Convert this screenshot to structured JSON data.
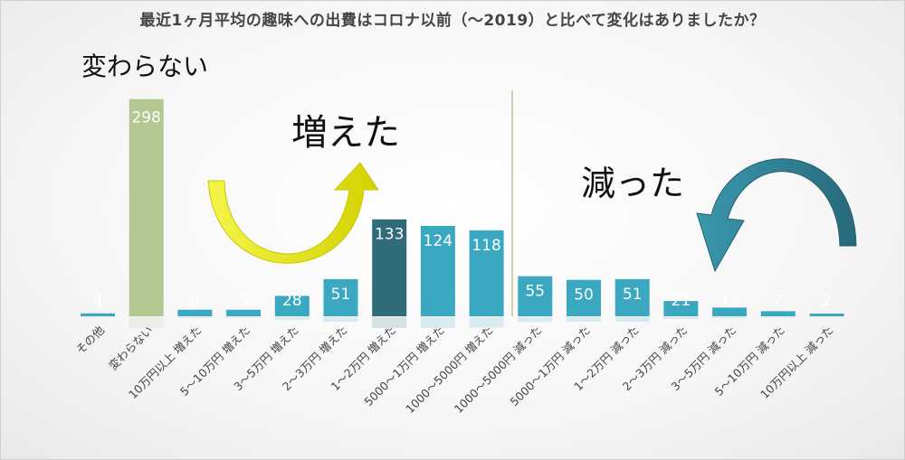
{
  "chart_data": {
    "type": "bar",
    "title": "最近1ヶ月平均の趣味への出費はコロナ以前（～2019）と比べて変化はありましたか？",
    "categories": [
      "その他",
      "変わらない",
      "10万円以上 増えた",
      "5～10万円 増えた",
      "3～5万円 増えた",
      "2～3万円 増えた",
      "1～2万円 増えた",
      "5000～1万円 増えた",
      "1000～5000円 増えた",
      "1000～5000円 減った",
      "5000～1万円 減った",
      "1～2万円 減った",
      "2～3万円 減った",
      "3～5万円 減った",
      "5～10万円 減った",
      "10万円以上 減った"
    ],
    "values": [
      4,
      298,
      9,
      9,
      28,
      51,
      133,
      124,
      118,
      55,
      50,
      51,
      21,
      12,
      7,
      2
    ],
    "bar_colors": [
      "#3aa8c0",
      "#b3c890",
      "#3aa8c0",
      "#3aa8c0",
      "#3aa8c0",
      "#3aa8c0",
      "#2f6b78",
      "#3aa8c0",
      "#3aa8c0",
      "#3aa8c0",
      "#3aa8c0",
      "#3aa8c0",
      "#3aa8c0",
      "#3aa8c0",
      "#3aa8c0",
      "#3aa8c0"
    ],
    "ylim": [
      0,
      310
    ],
    "grid": false,
    "annotations": {
      "unchanged": "変わらない",
      "increased": "増えた",
      "decreased": "減った"
    },
    "arrow_colors": {
      "increased": "#e6e600",
      "decreased": "#2e7f94"
    }
  }
}
